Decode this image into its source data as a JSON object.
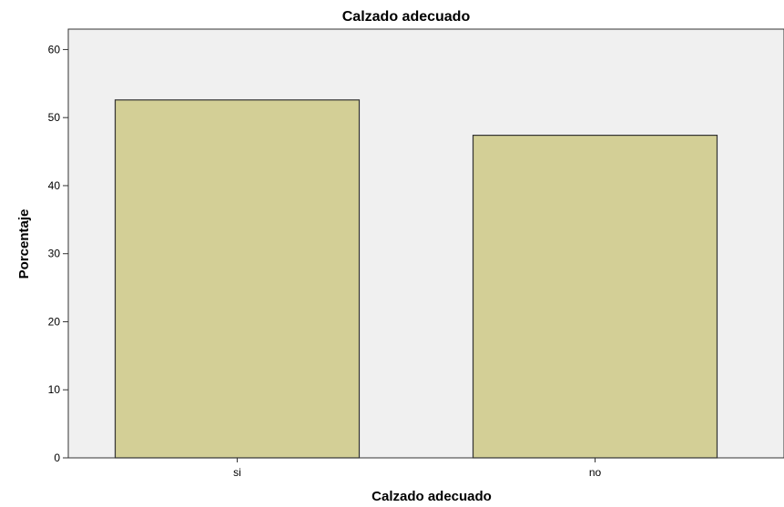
{
  "chart_data": {
    "type": "bar",
    "title": "Calzado adecuado",
    "xlabel": "Calzado adecuado",
    "ylabel": "Porcentaje",
    "categories": [
      "si",
      "no"
    ],
    "values": [
      52.6,
      47.4
    ],
    "ylim": [
      0,
      63
    ],
    "yticks": [
      0,
      10,
      20,
      30,
      40,
      50,
      60
    ],
    "grid": false,
    "colors": {
      "bar_fill": "#d3cf96",
      "bar_stroke": "#333333",
      "plot_background": "#f0f0f0",
      "axis": "#333333"
    }
  }
}
